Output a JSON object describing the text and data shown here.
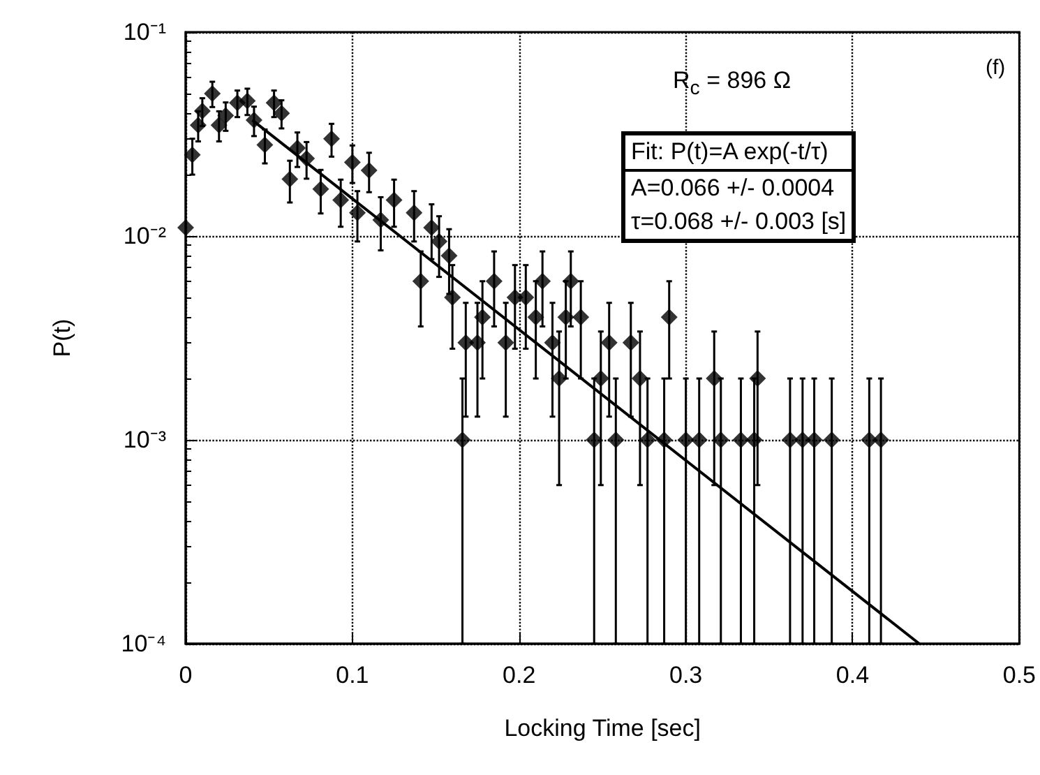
{
  "chart_data": {
    "type": "scatter",
    "xlabel": "Locking Time [sec]",
    "ylabel": "P(t)",
    "annotations": [
      "R$_{c}$ = 896 Ω",
      "(f)",
      "Fit: P(t)=A exp(-t/τ)",
      "A=0.066 +/- 0.0004",
      "τ=0.068 +/- 0.003 [s]"
    ],
    "log": "y",
    "grid": true,
    "marker": "diamond",
    "xlim": [
      0,
      0.5
    ],
    "xticks": [
      0,
      0.1,
      0.2,
      0.3,
      0.4,
      0.5
    ],
    "ylim": [
      0.0001,
      0.1
    ],
    "yticks": [
      {
        "value": 0.0001,
        "label": "10⁻⁴"
      },
      {
        "value": 0.001,
        "label": "10⁻³"
      },
      {
        "value": 0.01,
        "label": "10⁻²"
      },
      {
        "value": 0.1,
        "label": "10⁻¹"
      }
    ],
    "series": [
      {
        "color": "#000000",
        "x": [
          0,
          0.004,
          0.0075,
          0.01,
          0.016,
          0.02,
          0.024,
          0.031,
          0.037,
          0.041,
          0.0475,
          0.053,
          0.0575,
          0.0625,
          0.067,
          0.0725,
          0.081,
          0.0875,
          0.093,
          0.1,
          0.103,
          0.11,
          0.117,
          0.125,
          0.137,
          0.141,
          0.1475,
          0.152,
          0.158,
          0.16,
          0.166,
          0.168,
          0.175,
          0.178,
          0.185,
          0.192,
          0.1975,
          0.204,
          0.21,
          0.214,
          0.22,
          0.224,
          0.228,
          0.231,
          0.237,
          0.245,
          0.249,
          0.254,
          0.258,
          0.267,
          0.2725,
          0.277,
          0.287,
          0.29,
          0.3,
          0.308,
          0.317,
          0.321,
          0.333,
          0.341,
          0.343,
          0.3625,
          0.37,
          0.377,
          0.3875,
          0.41,
          0.417
        ],
        "values": [
          0.011,
          0.025,
          0.035,
          0.041,
          0.05,
          0.035,
          0.039,
          0.045,
          0.046,
          0.037,
          0.028,
          0.045,
          0.04,
          0.019,
          0.027,
          0.024,
          0.017,
          0.03,
          0.015,
          0.023,
          0.013,
          0.021,
          0.012,
          0.015,
          0.013,
          0.006,
          0.011,
          0.0094,
          0.008,
          0.005,
          0.001,
          0.003,
          0.003,
          0.004,
          0.006,
          0.003,
          0.005,
          0.005,
          0.004,
          0.006,
          0.003,
          0.002,
          0.004,
          0.006,
          0.004,
          0.001,
          0.002,
          0.003,
          0.001,
          0.003,
          0.002,
          0.001,
          0.001,
          0.004,
          0.001,
          0.001,
          0.002,
          0.001,
          0.001,
          0.001,
          0.002,
          0.001,
          0.001,
          0.001,
          0.001,
          0.001,
          0.001
        ],
        "errors": [
          null,
          0.005,
          0.0059,
          0.0064,
          0.0071,
          0.0059,
          0.0062,
          0.0067,
          0.0068,
          0.0061,
          0.0053,
          0.0067,
          0.0063,
          0.0044,
          0.0052,
          0.0049,
          0.0041,
          0.0055,
          0.0039,
          0.0048,
          0.0036,
          0.0046,
          0.0035,
          0.0039,
          0.0036,
          0.0024,
          0.0033,
          0.0031,
          0.0028,
          0.0022,
          [
            0.0001,
            0.002
          ],
          0.0017,
          0.0017,
          0.002,
          0.0024,
          0.0017,
          0.0022,
          0.0022,
          0.002,
          0.0024,
          0.0017,
          0.0014,
          0.002,
          0.0024,
          0.002,
          [
            0.0001,
            0.002
          ],
          0.0014,
          0.0017,
          [
            0.0001,
            0.002
          ],
          0.0017,
          0.0014,
          [
            0.0001,
            0.002
          ],
          [
            0.0001,
            0.002
          ],
          0.002,
          [
            0.0001,
            0.002
          ],
          [
            0.0001,
            0.002
          ],
          0.0014,
          [
            0.0001,
            0.002
          ],
          [
            0.0001,
            0.002
          ],
          [
            0.0001,
            0.002
          ],
          0.0014,
          [
            0.0001,
            0.002
          ],
          [
            0.0001,
            0.002
          ],
          [
            0.0001,
            0.002
          ],
          [
            0.0001,
            0.002
          ],
          [
            0.0001,
            0.002
          ],
          [
            0.0001,
            0.002
          ]
        ]
      },
      {
        "type": "line",
        "color": "#000000",
        "marker": "none",
        "x": [
          0.04,
          0.44
        ],
        "values": [
          0.037,
          0.0001
        ]
      }
    ]
  }
}
